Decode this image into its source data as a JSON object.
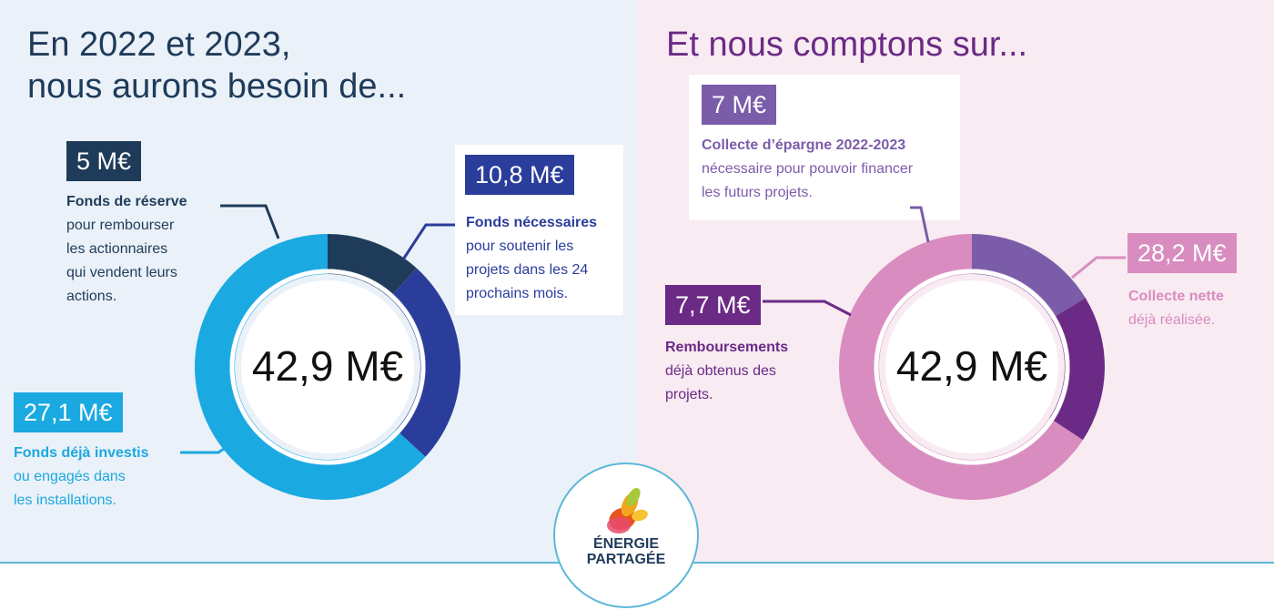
{
  "left": {
    "title_line1": "En 2022 et 2023,",
    "title_line2": "nous aurons besoin de...",
    "center_label": "42,9 M€",
    "items": [
      {
        "badge": "5 M€",
        "bold": "Fonds de réserve",
        "lines": [
          "pour rembourser",
          "les actionnaires",
          "qui vendent leurs",
          "actions."
        ],
        "color": "#1f3b5a"
      },
      {
        "badge": "10,8 M€",
        "bold": "Fonds nécessaires",
        "lines": [
          "pour soutenir les",
          "projets dans les 24",
          "prochains mois."
        ],
        "color": "#2b3d9a"
      },
      {
        "badge": "27,1 M€",
        "bold": "Fonds déjà investis",
        "lines": [
          "ou engagés dans",
          "les installations."
        ],
        "color": "#1aa9e1"
      }
    ]
  },
  "right": {
    "title": "Et nous comptons sur...",
    "center_label": "42,9 M€",
    "items": [
      {
        "badge": "7 M€",
        "bold": "Collecte d’épargne 2022-2023",
        "lines": [
          "nécessaire pour pouvoir financer",
          "les futurs projets."
        ],
        "color": "#7b5ca9"
      },
      {
        "badge": "7,7 M€",
        "bold": "Remboursements",
        "lines": [
          "déjà obtenus des",
          "projets."
        ],
        "color": "#6b2a86"
      },
      {
        "badge": "28,2 M€",
        "bold": "Collecte nette",
        "lines": [
          "déjà réalisée."
        ],
        "color": "#d98cbf"
      }
    ]
  },
  "logo": {
    "line1": "ÉNERGIE",
    "line2": "PARTAGÉE"
  },
  "chart_data": [
    {
      "type": "pie",
      "title": "En 2022 et 2023, nous aurons besoin de...",
      "total": 42.9,
      "unit": "M€",
      "slices": [
        {
          "name": "Fonds de réserve",
          "value": 5,
          "color": "#1f3b5a"
        },
        {
          "name": "Fonds nécessaires",
          "value": 10.8,
          "color": "#2b3d9a"
        },
        {
          "name": "Fonds déjà investis",
          "value": 27.1,
          "color": "#1aa9e1"
        }
      ]
    },
    {
      "type": "pie",
      "title": "Et nous comptons sur...",
      "total": 42.9,
      "unit": "M€",
      "slices": [
        {
          "name": "Collecte d’épargne 2022-2023",
          "value": 7,
          "color": "#7b5ca9"
        },
        {
          "name": "Remboursements",
          "value": 7.7,
          "color": "#6b2a86"
        },
        {
          "name": "Collecte nette",
          "value": 28.2,
          "color": "#d98cbf"
        }
      ]
    }
  ]
}
